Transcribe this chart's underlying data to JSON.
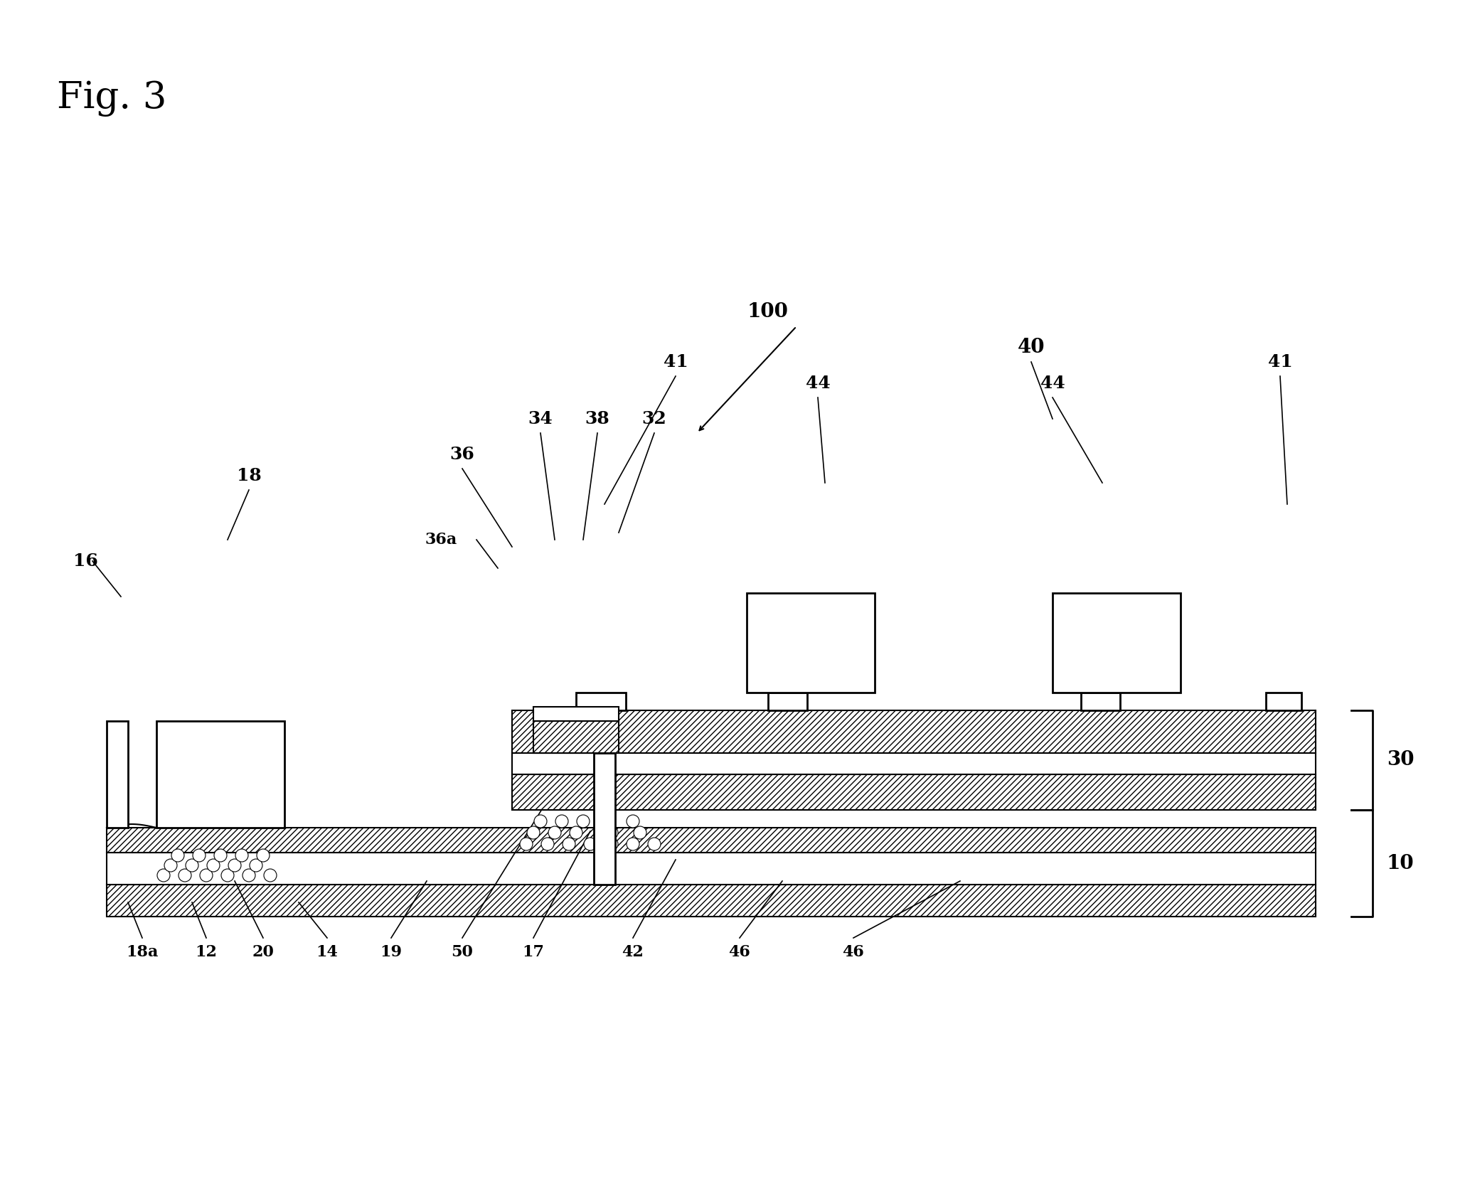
{
  "title": "Fig. 3",
  "bg_color": "#ffffff",
  "line_color": "#000000",
  "hatch_color": "#000000",
  "fig_width": 20.6,
  "fig_height": 16.89,
  "dpi": 100
}
